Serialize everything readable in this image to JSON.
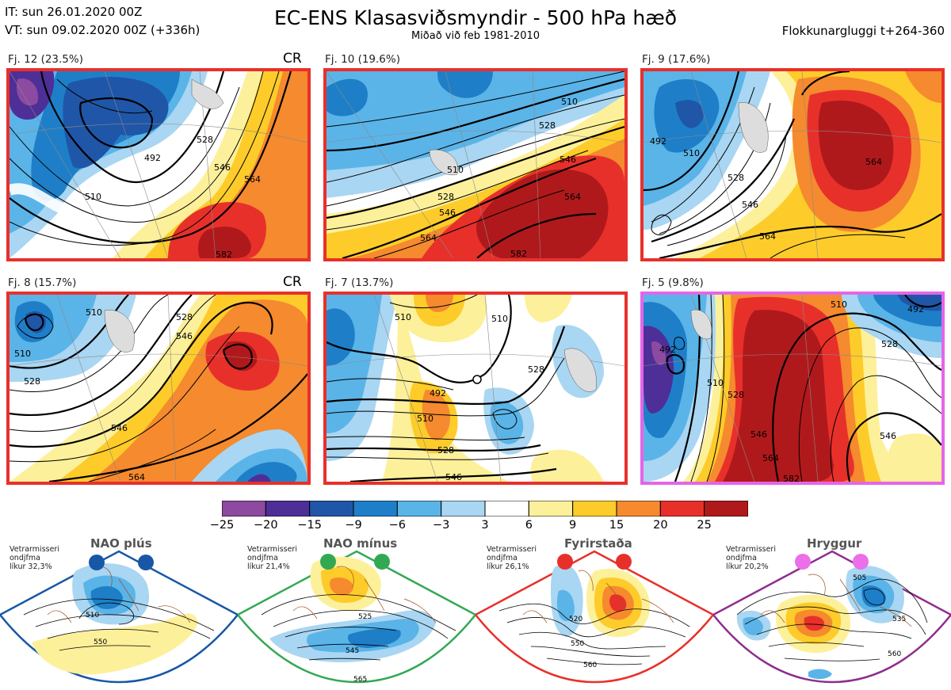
{
  "header": {
    "init_time": "IT: sun 26.01.2020 00Z",
    "valid_time": "VT: sun 09.02.2020 00Z  (+336h)",
    "title": "EC-ENS Klasasviðsmyndir - 500 hPa hæð",
    "subtitle": "Miðað við feb 1981-2010",
    "window": "Flokkunargluggi t+264-360"
  },
  "panels": [
    {
      "label": "Fj. 12 (23.5%)",
      "tag": "CR",
      "border": "#e8302b",
      "contours": [
        "492",
        "510",
        "528",
        "546",
        "564",
        "582"
      ]
    },
    {
      "label": "Fj. 10 (19.6%)",
      "tag": "",
      "border": "#e8302b",
      "contours": [
        "510",
        "528",
        "546",
        "564",
        "582"
      ]
    },
    {
      "label": "Fj. 9 (17.6%)",
      "tag": "",
      "border": "#e8302b",
      "contours": [
        "492",
        "510",
        "528",
        "546",
        "564"
      ]
    },
    {
      "label": "Fj. 8 (15.7%)",
      "tag": "CR",
      "border": "#e8302b",
      "contours": [
        "510",
        "528",
        "546",
        "564"
      ]
    },
    {
      "label": "Fj. 7 (13.7%)",
      "tag": "",
      "border": "#e8302b",
      "contours": [
        "492",
        "510",
        "528",
        "546"
      ]
    },
    {
      "label": "Fj. 5 (9.8%)",
      "tag": "",
      "border": "#e565e8",
      "contours": [
        "492",
        "510",
        "528",
        "546",
        "564",
        "582"
      ]
    }
  ],
  "colorbar": {
    "ticks": [
      "−25",
      "−20",
      "−15",
      "−9",
      "−6",
      "−3",
      "3",
      "6",
      "9",
      "15",
      "20",
      "25"
    ],
    "colors": [
      "#8c4aa0",
      "#4e2f98",
      "#1f56a8",
      "#1e7fc8",
      "#5ab4e8",
      "#a9d6f2",
      "#ffffff",
      "#fdf09a",
      "#fdcc2a",
      "#f58a2e",
      "#e8302b",
      "#b0191b"
    ]
  },
  "regimes": [
    {
      "name": "NAO plús",
      "info": [
        "Vetrarmisseri",
        "ondjfma",
        "líkur 32,3%"
      ],
      "color": "#1757a6",
      "dot": "#1757a6",
      "contours": [
        "510",
        "550"
      ]
    },
    {
      "name": "NAO mínus",
      "info": [
        "Vetrarmisseri",
        "ondjfma",
        "líkur 21,4%"
      ],
      "color": "#33a853",
      "dot": "#33a853",
      "contours": [
        "525",
        "545",
        "565"
      ]
    },
    {
      "name": "Fyrirstaða",
      "info": [
        "Vetrarmisseri",
        "ondjfma",
        "líkur 26,1%"
      ],
      "color": "#e8302b",
      "dot": "#e8302b",
      "contours": [
        "520",
        "550",
        "560"
      ]
    },
    {
      "name": "Hryggur",
      "info": [
        "Vetrarmisseri",
        "ondjfma",
        "líkur 20,2%"
      ],
      "color": "#8e2e8e",
      "dot": "#ea6fe8",
      "contours": [
        "505",
        "535",
        "560"
      ]
    }
  ]
}
